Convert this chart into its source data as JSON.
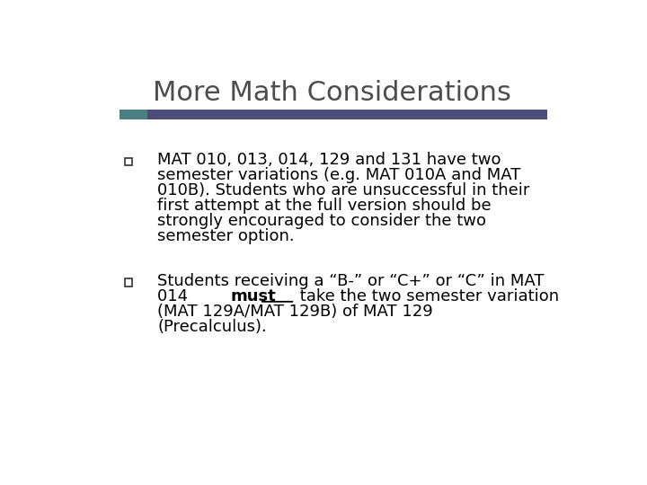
{
  "title": "More Math Considerations",
  "title_fontsize": 22,
  "title_color": "#4d4d4d",
  "background_color": "#ffffff",
  "bar_color_teal": "#4a8080",
  "bar_color_purple": "#4d4d7a",
  "bullet_fontsize": 13,
  "bullet_color": "#000000",
  "checkbox_color": "#333333",
  "bullet1_lines": [
    "MAT 010, 013, 014, 129 and 131 have two",
    "semester variations (e.g. MAT 010A and MAT",
    "010B). Students who are unsuccessful in their",
    "first attempt at the full version should be",
    "strongly encouraged to consider the two",
    "semester option."
  ],
  "bullet2_line1": "Students receiving a “B-” or “C+” or “C” in MAT",
  "bullet2_line2_pre": "014 ",
  "bullet2_line2_must": "must",
  "bullet2_line2_post": " take the two semester variation",
  "bullet2_line3": "(MAT 129A/MAT 129B) of MAT 129",
  "bullet2_line4": "(Precalculus)."
}
